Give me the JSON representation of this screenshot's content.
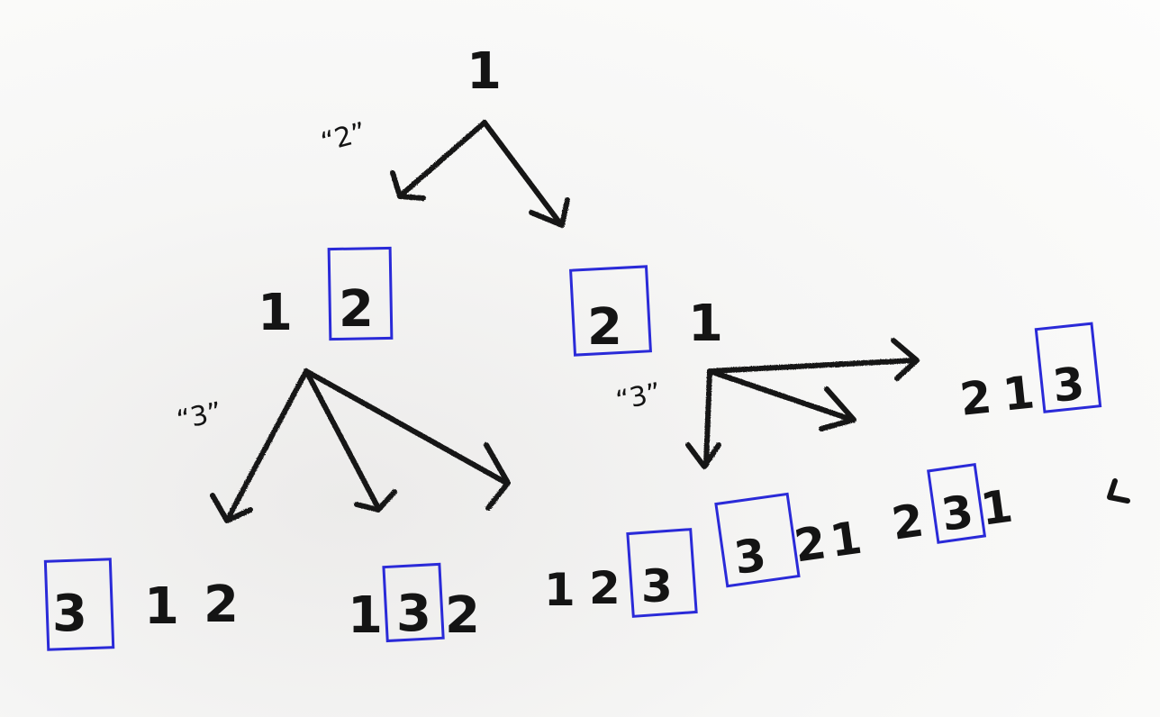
{
  "tree": {
    "root": {
      "digits": [
        "1"
      ]
    },
    "level1_branch_label": "“2”",
    "level1": [
      {
        "digits": [
          "1",
          "2"
        ],
        "highlight_index": 1
      },
      {
        "digits": [
          "2",
          "1"
        ],
        "highlight_index": 0
      }
    ],
    "level2_branch_label": "“3”",
    "level2": [
      {
        "digits": [
          "3",
          "1",
          "2"
        ],
        "highlight_index": 0
      },
      {
        "digits": [
          "1",
          "3",
          "2"
        ],
        "highlight_index": 1
      },
      {
        "digits": [
          "1",
          "2",
          "3"
        ],
        "highlight_index": 2
      },
      {
        "digits": [
          "3",
          "2",
          "1"
        ],
        "highlight_index": 0
      },
      {
        "digits": [
          "2",
          "3",
          "1"
        ],
        "highlight_index": 1
      },
      {
        "digits": [
          "2",
          "1",
          "3"
        ],
        "highlight_index": 2
      }
    ]
  },
  "colors": {
    "ink": "#141414",
    "highlight_box": "#2a2ad8",
    "paper": "#fdfdfc"
  }
}
